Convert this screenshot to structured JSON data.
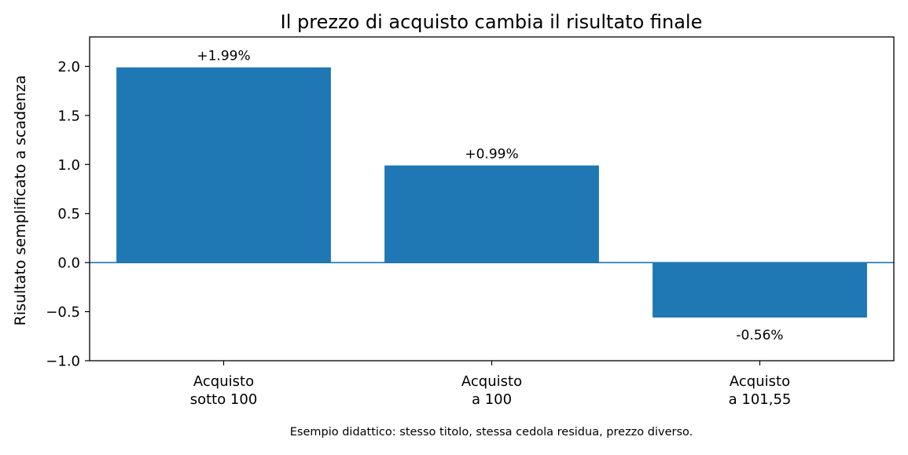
{
  "chart_data": {
    "type": "bar",
    "title": "Il prezzo di acquisto cambia il risultato finale",
    "xlabel": "",
    "ylabel": "Risultato semplificato a scadenza",
    "caption": "Esempio didattico: stesso titolo, stessa cedola residua, prezzo diverso.",
    "categories": [
      [
        "Acquisto",
        "sotto 100"
      ],
      [
        "Acquisto",
        "a 100"
      ],
      [
        "Acquisto",
        "a 101,55"
      ]
    ],
    "values": [
      1.99,
      0.99,
      -0.56
    ],
    "data_labels": [
      "+1.99%",
      "+0.99%",
      "-0.56%"
    ],
    "ylim": [
      -1.0,
      2.3
    ],
    "yticks": [
      -1.0,
      -0.5,
      0.0,
      0.5,
      1.0,
      1.5,
      2.0
    ],
    "ytick_labels": [
      "−1.0",
      "−0.5",
      "0.0",
      "0.5",
      "1.0",
      "1.5",
      "2.0"
    ],
    "baseline": 0,
    "grid": false,
    "legend": "none",
    "colors": {
      "bar": "#1f77b4",
      "baseline": "#1f77b4",
      "axes": "#000000"
    }
  }
}
